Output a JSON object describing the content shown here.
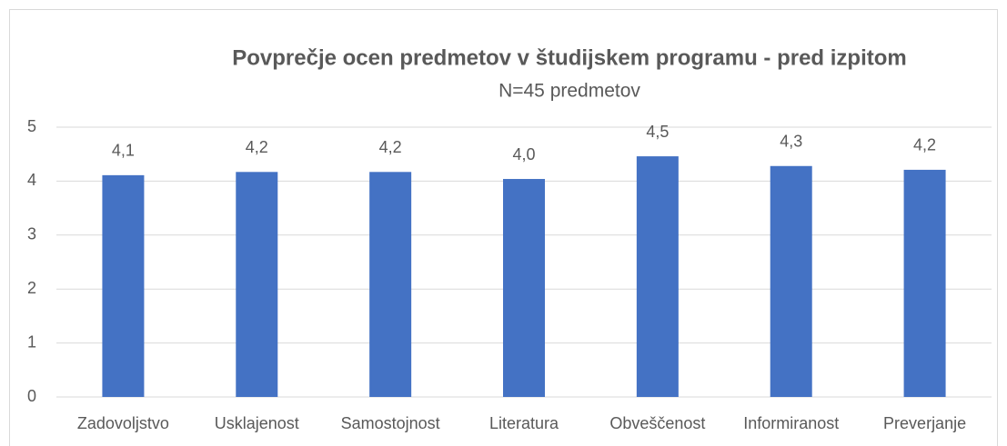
{
  "chart_data": {
    "type": "bar",
    "title": "Povprečje ocen predmetov v študijskem programu - pred izpitom",
    "subtitle": "N=45 predmetov",
    "categories": [
      "Zadovoljstvo",
      "Usklajenost",
      "Samostojnost",
      "Literatura",
      "Obveščenost",
      "Informiranost",
      "Preverjanje"
    ],
    "values": [
      4.11,
      4.17,
      4.17,
      4.04,
      4.46,
      4.28,
      4.21
    ],
    "value_labels": [
      "4,1",
      "4,2",
      "4,2",
      "4,0",
      "4,5",
      "4,3",
      "4,2"
    ],
    "color": "#4472c4",
    "ylim": [
      0,
      5
    ],
    "yticks": [
      0,
      1,
      2,
      3,
      4,
      5
    ],
    "grid": true
  }
}
